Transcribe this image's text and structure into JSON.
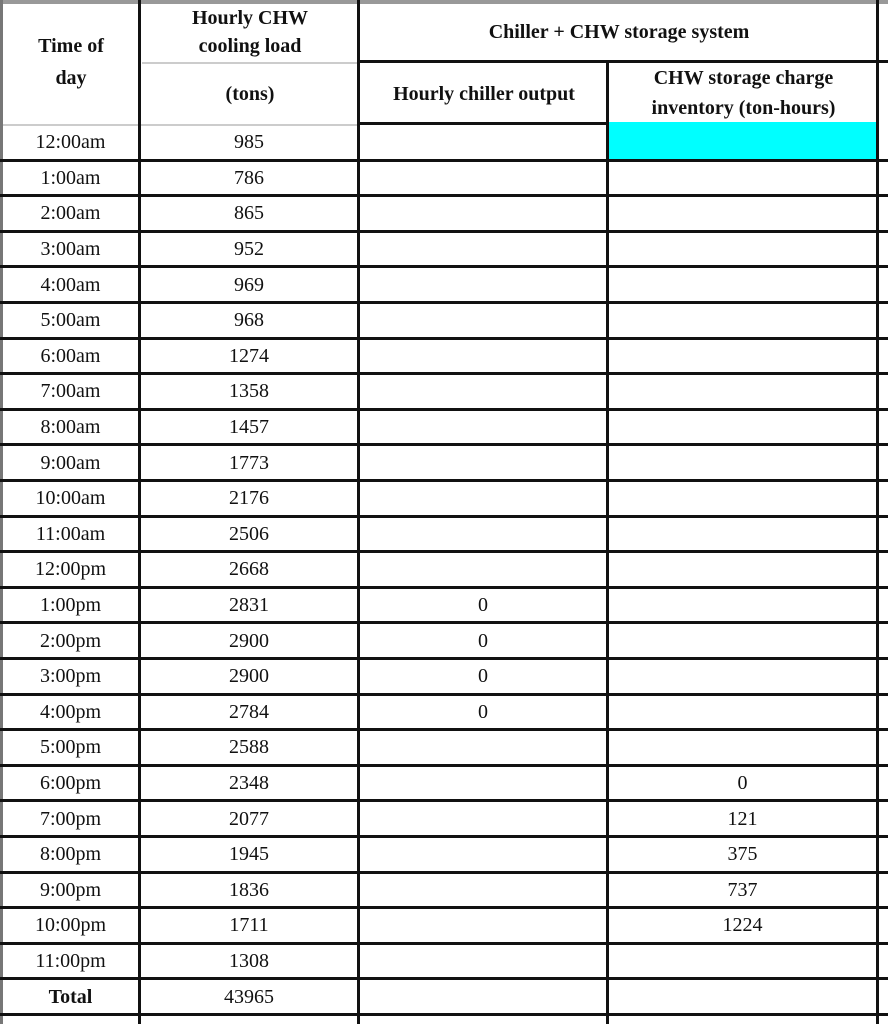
{
  "header": {
    "time_of_day": "Time of day",
    "cooling_load_line1": "Hourly CHW cooling load",
    "cooling_load_units": "(tons)",
    "system_group": "Chiller + CHW storage system",
    "chiller_output": "Hourly chiller output",
    "storage_inventory": "CHW storage charge inventory (ton-hours)"
  },
  "highlight_color": "#00FFFF",
  "rows": [
    {
      "time": "12:00am",
      "load": "985",
      "chiller": "",
      "storage": "",
      "highlight": true
    },
    {
      "time": "1:00am",
      "load": "786",
      "chiller": "",
      "storage": ""
    },
    {
      "time": "2:00am",
      "load": "865",
      "chiller": "",
      "storage": ""
    },
    {
      "time": "3:00am",
      "load": "952",
      "chiller": "",
      "storage": ""
    },
    {
      "time": "4:00am",
      "load": "969",
      "chiller": "",
      "storage": ""
    },
    {
      "time": "5:00am",
      "load": "968",
      "chiller": "",
      "storage": ""
    },
    {
      "time": "6:00am",
      "load": "1274",
      "chiller": "",
      "storage": ""
    },
    {
      "time": "7:00am",
      "load": "1358",
      "chiller": "",
      "storage": ""
    },
    {
      "time": "8:00am",
      "load": "1457",
      "chiller": "",
      "storage": ""
    },
    {
      "time": "9:00am",
      "load": "1773",
      "chiller": "",
      "storage": ""
    },
    {
      "time": "10:00am",
      "load": "2176",
      "chiller": "",
      "storage": ""
    },
    {
      "time": "11:00am",
      "load": "2506",
      "chiller": "",
      "storage": ""
    },
    {
      "time": "12:00pm",
      "load": "2668",
      "chiller": "",
      "storage": ""
    },
    {
      "time": "1:00pm",
      "load": "2831",
      "chiller": "0",
      "storage": ""
    },
    {
      "time": "2:00pm",
      "load": "2900",
      "chiller": "0",
      "storage": ""
    },
    {
      "time": "3:00pm",
      "load": "2900",
      "chiller": "0",
      "storage": ""
    },
    {
      "time": "4:00pm",
      "load": "2784",
      "chiller": "0",
      "storage": ""
    },
    {
      "time": "5:00pm",
      "load": "2588",
      "chiller": "",
      "storage": ""
    },
    {
      "time": "6:00pm",
      "load": "2348",
      "chiller": "",
      "storage": "0"
    },
    {
      "time": "7:00pm",
      "load": "2077",
      "chiller": "",
      "storage": "121"
    },
    {
      "time": "8:00pm",
      "load": "1945",
      "chiller": "",
      "storage": "375"
    },
    {
      "time": "9:00pm",
      "load": "1836",
      "chiller": "",
      "storage": "737"
    },
    {
      "time": "10:00pm",
      "load": "1711",
      "chiller": "",
      "storage": "1224"
    },
    {
      "time": "11:00pm",
      "load": "1308",
      "chiller": "",
      "storage": ""
    }
  ],
  "total": {
    "label": "Total",
    "load": "43965",
    "chiller": "",
    "storage": ""
  }
}
